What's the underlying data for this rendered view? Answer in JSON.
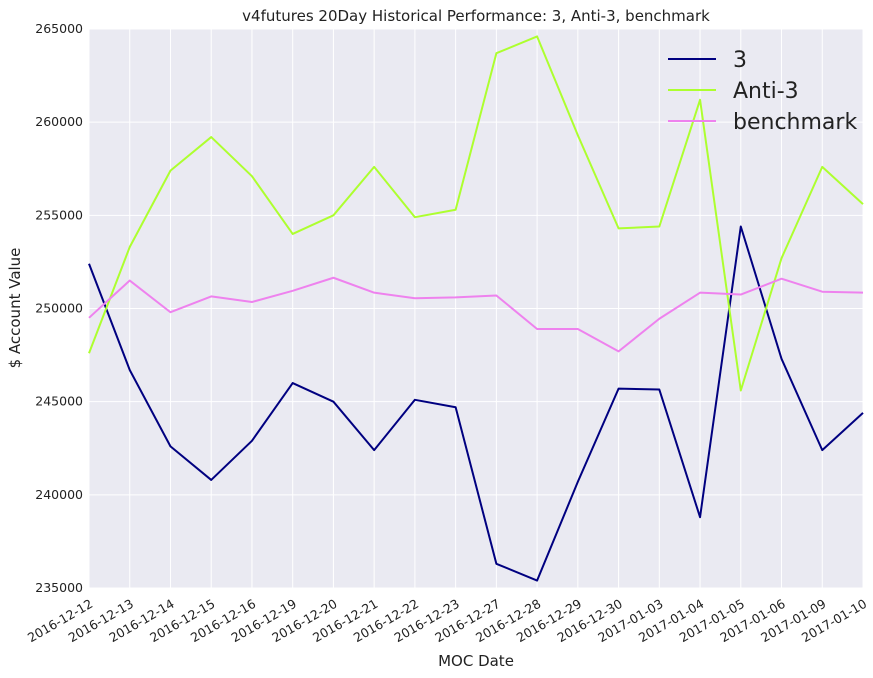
{
  "chart_data": {
    "type": "line",
    "title": "v4futures 20Day Historical Performance: 3, Anti-3, benchmark",
    "xlabel": "MOC Date",
    "ylabel": "$ Account Value",
    "ylim": [
      235000,
      265000
    ],
    "yticks": [
      235000,
      240000,
      245000,
      250000,
      255000,
      260000,
      265000
    ],
    "grid": true,
    "legend_position": "top-right",
    "background": "#eaeaf2",
    "categories": [
      "2016-12-12",
      "2016-12-13",
      "2016-12-14",
      "2016-12-15",
      "2016-12-16",
      "2016-12-19",
      "2016-12-20",
      "2016-12-21",
      "2016-12-22",
      "2016-12-23",
      "2016-12-27",
      "2016-12-28",
      "2016-12-29",
      "2016-12-30",
      "2017-01-03",
      "2017-01-04",
      "2017-01-05",
      "2017-01-06",
      "2017-01-09",
      "2017-01-10"
    ],
    "series": [
      {
        "name": "3",
        "color": "#000080",
        "values": [
          252400,
          246700,
          242600,
          240800,
          242900,
          246000,
          245000,
          242400,
          245100,
          244700,
          236300,
          235400,
          240700,
          245700,
          245650,
          238800,
          254400,
          247300,
          242400,
          244400
        ]
      },
      {
        "name": "Anti-3",
        "color": "#adff2f",
        "values": [
          247600,
          253300,
          257400,
          259200,
          257100,
          254000,
          255000,
          257600,
          254900,
          255300,
          263700,
          264600,
          259300,
          254300,
          254400,
          261200,
          245600,
          252700,
          257600,
          255600
        ]
      },
      {
        "name": "benchmark",
        "color": "#ee82ee",
        "values": [
          249500,
          251500,
          249800,
          250650,
          250350,
          250950,
          251650,
          250850,
          250550,
          250600,
          250700,
          248900,
          248900,
          247700,
          249450,
          250850,
          250750,
          251600,
          250900,
          250850
        ]
      }
    ]
  }
}
